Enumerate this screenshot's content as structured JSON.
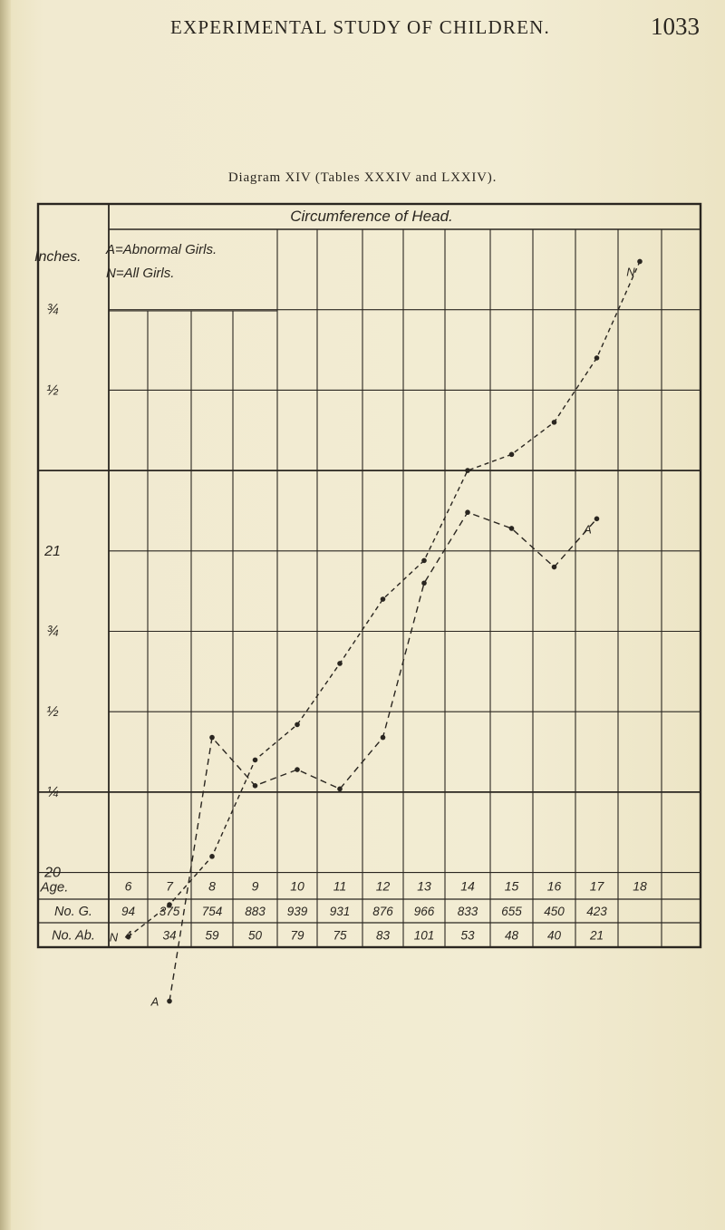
{
  "page_header": {
    "running_title": "EXPERIMENTAL STUDY OF CHILDREN.",
    "page_number": "1033"
  },
  "caption": "Diagram XIV (Tables XXXIV and LXXIV).",
  "colors": {
    "paper": "#efe8c8",
    "ink": "#2a2620"
  },
  "chart_data": {
    "type": "line",
    "title": "Circumference of Head.",
    "legend": {
      "line1": "A=Abnormal Girls.",
      "line2": "N=All Girls.",
      "placement": "top-left"
    },
    "y_axis": {
      "label": "Inches.",
      "ticks": [
        {
          "value": 21.75,
          "text": "¾"
        },
        {
          "value": 21.5,
          "text": "½"
        },
        {
          "value": 21,
          "text": "21"
        },
        {
          "value": 20.75,
          "text": "¾"
        },
        {
          "value": 20.5,
          "text": "½"
        },
        {
          "value": 20.25,
          "text": "¼"
        },
        {
          "value": 20,
          "text": "20"
        }
      ],
      "range": [
        19.75,
        22
      ]
    },
    "x_axis": {
      "label": "Age.",
      "values": [
        6,
        7,
        8,
        9,
        10,
        11,
        12,
        13,
        14,
        15,
        16,
        17,
        18
      ]
    },
    "table": [
      {
        "label": "No. G.",
        "values": [
          "94",
          "375",
          "754",
          "883",
          "939",
          "931",
          "876",
          "966",
          "833",
          "655",
          "450",
          "423",
          ""
        ]
      },
      {
        "label": "No. Ab.",
        "values": [
          "4",
          "34",
          "59",
          "50",
          "79",
          "75",
          "83",
          "101",
          "53",
          "48",
          "40",
          "21",
          ""
        ]
      }
    ],
    "series": [
      {
        "name": "N",
        "x": [
          6,
          7,
          8,
          9,
          10,
          11,
          12,
          13,
          14,
          15,
          16,
          17,
          18
        ],
        "y": [
          19.8,
          19.9,
          20.05,
          20.35,
          20.46,
          20.65,
          20.85,
          20.97,
          21.25,
          21.3,
          21.4,
          21.6,
          21.9
        ]
      },
      {
        "name": "A",
        "x": [
          7,
          8,
          9,
          10,
          11,
          12,
          13,
          14,
          15,
          16,
          17
        ],
        "y": [
          19.6,
          20.42,
          20.27,
          20.32,
          20.26,
          20.42,
          20.9,
          21.12,
          21.07,
          20.95,
          21.1
        ]
      }
    ],
    "grid": true
  }
}
